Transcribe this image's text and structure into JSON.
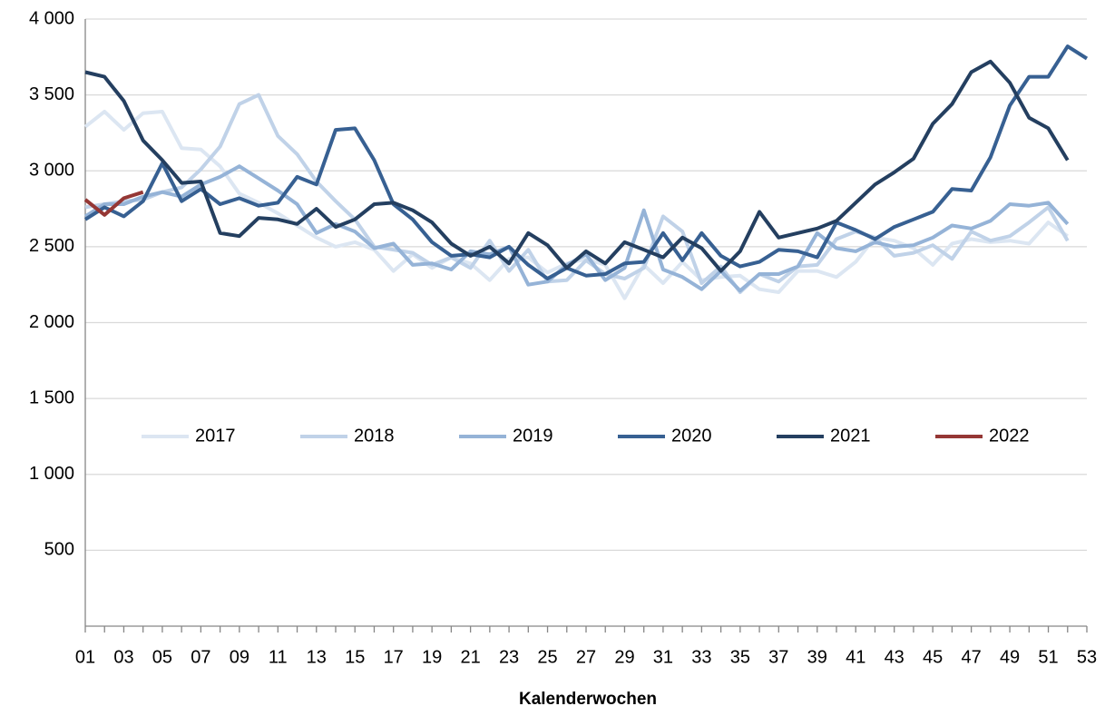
{
  "chart_data": {
    "type": "line",
    "x_label": "Kalenderwochen",
    "categories": [
      "01",
      null,
      "03",
      null,
      "05",
      null,
      "07",
      null,
      "09",
      null,
      "11",
      null,
      "13",
      null,
      "15",
      null,
      "17",
      null,
      "19",
      null,
      "21",
      null,
      "23",
      null,
      "25",
      null,
      "27",
      null,
      "29",
      null,
      "31",
      null,
      "33",
      null,
      "35",
      null,
      "37",
      null,
      "39",
      null,
      "41",
      null,
      "43",
      null,
      "45",
      null,
      "47",
      null,
      "49",
      null,
      "51",
      null,
      "53"
    ],
    "ylim": [
      0,
      4000
    ],
    "yticks": [
      {
        "value": 500,
        "label": "500"
      },
      {
        "value": 1000,
        "label": "1 000"
      },
      {
        "value": 1500,
        "label": "1 500"
      },
      {
        "value": 2000,
        "label": "2 000"
      },
      {
        "value": 2500,
        "label": "2 500"
      },
      {
        "value": 3000,
        "label": "3 000"
      },
      {
        "value": 3500,
        "label": "3 500"
      },
      {
        "value": 4000,
        "label": "4 000"
      }
    ],
    "grid": true,
    "legend": "center",
    "series": [
      {
        "name": "2017",
        "color": "#dce6f2",
        "values": [
          3290,
          3390,
          3270,
          3380,
          3390,
          3150,
          3140,
          3030,
          2850,
          2790,
          2720,
          2640,
          2560,
          2500,
          2530,
          2480,
          2340,
          2450,
          2360,
          2430,
          2390,
          2280,
          2420,
          2430,
          2330,
          2390,
          2420,
          2380,
          2160,
          2380,
          2260,
          2400,
          2280,
          2300,
          2310,
          2220,
          2200,
          2340,
          2340,
          2300,
          2400,
          2560,
          2540,
          2490,
          2380,
          2520,
          2550,
          2530,
          2540,
          2520,
          2660,
          2570,
          null
        ]
      },
      {
        "name": "2018",
        "color": "#c0d2e8",
        "values": [
          2760,
          2780,
          2800,
          2810,
          2860,
          2890,
          3010,
          3160,
          3440,
          3500,
          3230,
          3110,
          2930,
          2800,
          2680,
          2500,
          2480,
          2460,
          2380,
          2430,
          2360,
          2540,
          2340,
          2480,
          2270,
          2280,
          2410,
          2320,
          2290,
          2360,
          2700,
          2600,
          2260,
          2370,
          2200,
          2320,
          2270,
          2370,
          2380,
          2550,
          2600,
          2560,
          2440,
          2460,
          2510,
          2420,
          2600,
          2540,
          2570,
          2660,
          2760,
          2540,
          null
        ]
      },
      {
        "name": "2019",
        "color": "#95b3d7",
        "values": [
          2700,
          2780,
          2780,
          2830,
          2860,
          2830,
          2910,
          2960,
          3030,
          2950,
          2870,
          2780,
          2590,
          2650,
          2600,
          2490,
          2520,
          2380,
          2390,
          2350,
          2470,
          2450,
          2500,
          2250,
          2270,
          2380,
          2450,
          2280,
          2360,
          2740,
          2350,
          2300,
          2220,
          2340,
          2210,
          2320,
          2320,
          2370,
          2590,
          2490,
          2470,
          2530,
          2500,
          2510,
          2560,
          2640,
          2620,
          2670,
          2780,
          2770,
          2790,
          2650,
          null
        ]
      },
      {
        "name": "2020",
        "color": "#376092",
        "values": [
          2680,
          2760,
          2700,
          2800,
          3050,
          2800,
          2880,
          2780,
          2820,
          2770,
          2790,
          2960,
          2910,
          3270,
          3280,
          3070,
          2780,
          2680,
          2530,
          2440,
          2450,
          2430,
          2500,
          2380,
          2290,
          2360,
          2310,
          2320,
          2390,
          2400,
          2590,
          2410,
          2590,
          2440,
          2370,
          2400,
          2480,
          2470,
          2430,
          2660,
          2610,
          2550,
          2630,
          2680,
          2730,
          2880,
          2870,
          3090,
          3430,
          3620,
          3620,
          3820,
          3740
        ]
      },
      {
        "name": "2021",
        "color": "#243f60",
        "values": [
          3650,
          3620,
          3460,
          3200,
          3070,
          2920,
          2930,
          2590,
          2570,
          2690,
          2680,
          2650,
          2750,
          2630,
          2680,
          2780,
          2790,
          2740,
          2660,
          2520,
          2440,
          2500,
          2390,
          2590,
          2510,
          2360,
          2470,
          2390,
          2530,
          2480,
          2430,
          2560,
          2490,
          2340,
          2470,
          2730,
          2560,
          2590,
          2620,
          2670,
          2790,
          2910,
          2990,
          3080,
          3310,
          3440,
          3650,
          3720,
          3580,
          3350,
          3280,
          3070,
          null
        ]
      },
      {
        "name": "2022",
        "color": "#953735",
        "values": [
          2810,
          2710,
          2820,
          2860,
          null,
          null,
          null,
          null,
          null,
          null,
          null,
          null,
          null,
          null,
          null,
          null,
          null,
          null,
          null,
          null,
          null,
          null,
          null,
          null,
          null,
          null,
          null,
          null,
          null,
          null,
          null,
          null,
          null,
          null,
          null,
          null,
          null,
          null,
          null,
          null,
          null,
          null,
          null,
          null,
          null,
          null,
          null,
          null,
          null,
          null,
          null,
          null,
          null
        ]
      }
    ]
  }
}
